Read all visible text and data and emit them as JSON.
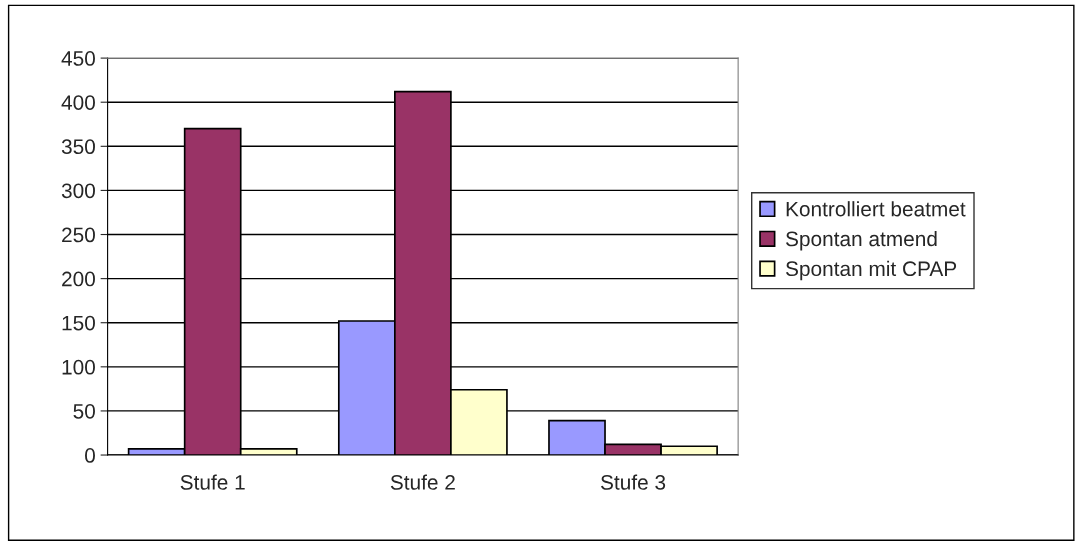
{
  "chart_data": {
    "type": "bar",
    "categories": [
      "Stufe 1",
      "Stufe 2",
      "Stufe 3"
    ],
    "series": [
      {
        "name": "Kontrolliert beatmet",
        "color": "#9999ff",
        "values": [
          7,
          152,
          39
        ]
      },
      {
        "name": "Spontan atmend",
        "color": "#993366",
        "values": [
          370,
          412,
          12
        ]
      },
      {
        "name": "Spontan mit CPAP",
        "color": "#ffffcc",
        "values": [
          7,
          74,
          10
        ]
      }
    ],
    "ylim": [
      0,
      450
    ],
    "yticks": [
      0,
      50,
      100,
      150,
      200,
      250,
      300,
      350,
      400,
      450
    ],
    "grid": "y",
    "legend": "right"
  }
}
